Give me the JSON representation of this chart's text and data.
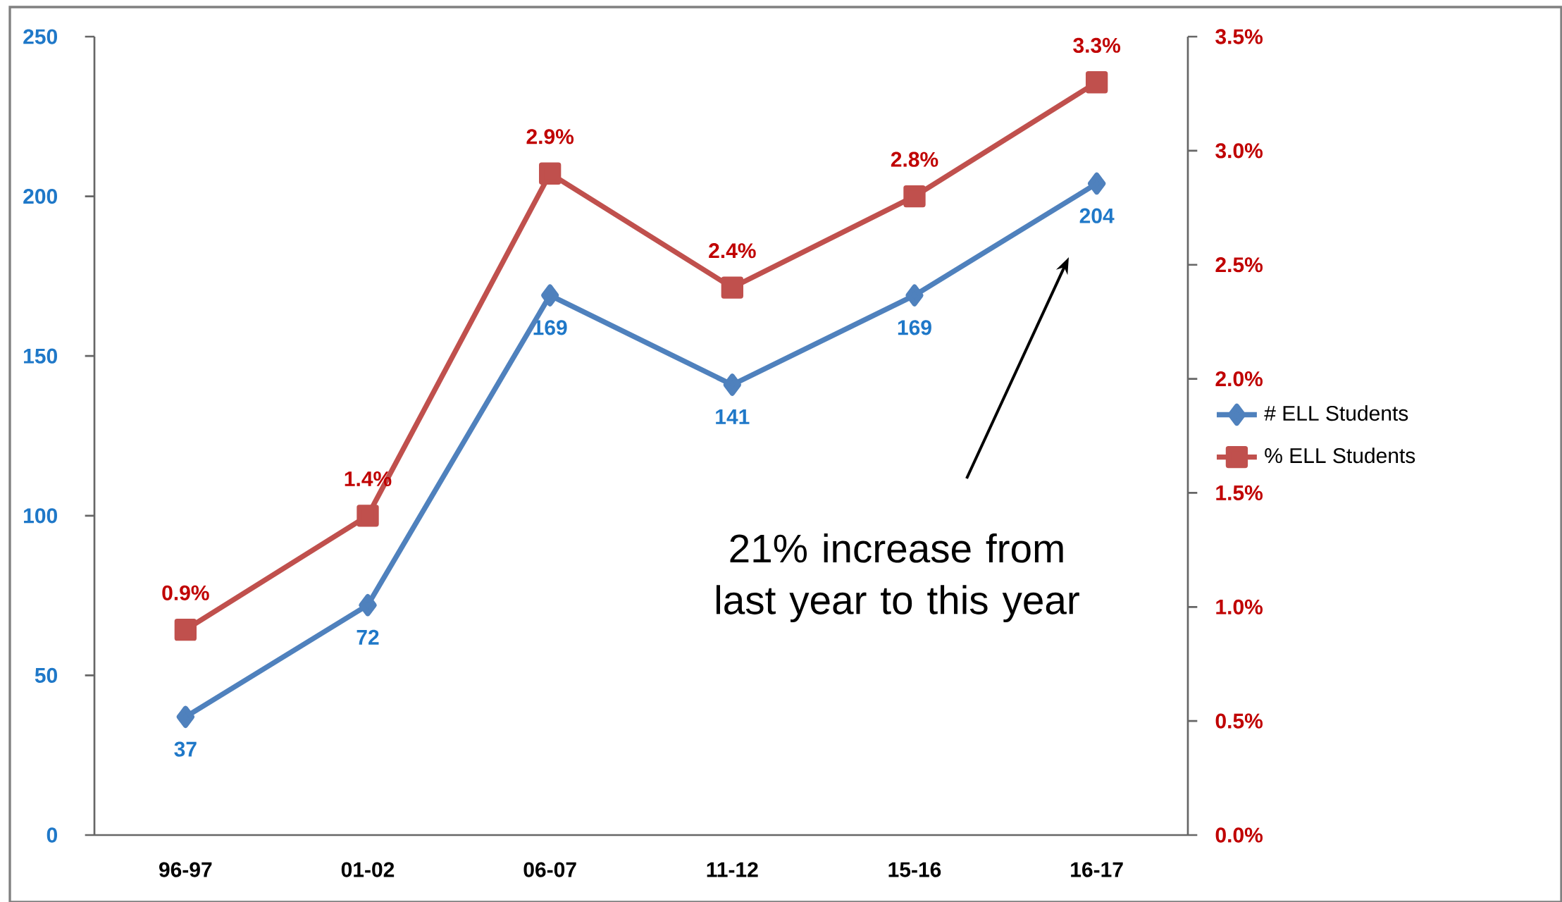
{
  "chart_data": {
    "type": "line",
    "categories": [
      "96-97",
      "01-02",
      "06-07",
      "11-12",
      "15-16",
      "16-17"
    ],
    "series": [
      {
        "name": "# ELL Students",
        "color": "#4f81bd",
        "marker": "diamond",
        "values": [
          37,
          72,
          169,
          141,
          169,
          204
        ],
        "value_labels": [
          "37",
          "72",
          "169",
          "141",
          "169",
          "204"
        ]
      },
      {
        "name": "% ELL Students",
        "color": "#c0504d",
        "marker": "square",
        "axis": "y2",
        "values": [
          0.9,
          1.4,
          2.9,
          2.4,
          2.8,
          3.3
        ],
        "value_labels": [
          "0.9%",
          "1.4%",
          "2.9%",
          "2.4%",
          "2.8%",
          "3.3%"
        ]
      }
    ],
    "ylim": [
      0,
      250
    ],
    "yticks": [
      0,
      50,
      100,
      150,
      200,
      250
    ],
    "y2lim": [
      0,
      3.5
    ],
    "y2ticks": [
      {
        "value": 0,
        "label": "0.0%"
      },
      {
        "value": 0.5,
        "label": "0.5%"
      },
      {
        "value": 1,
        "label": "1.0%"
      },
      {
        "value": 1.5,
        "label": "1.5%"
      },
      {
        "value": 2,
        "label": "2.0%"
      },
      {
        "value": 2.5,
        "label": "2.5%"
      },
      {
        "value": 3,
        "label": "3.0%"
      },
      {
        "value": 3.5,
        "label": "3.5%"
      }
    ],
    "legend": "right",
    "grid": false,
    "annotations": [
      "21% increase from last year to this year"
    ]
  }
}
